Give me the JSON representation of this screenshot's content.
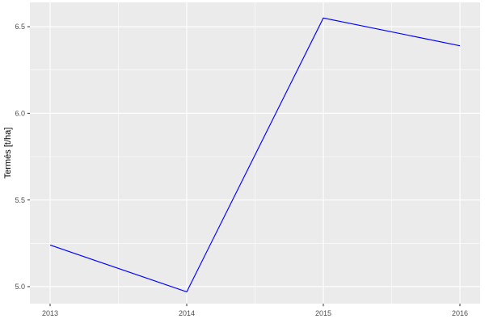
{
  "chart_data": {
    "type": "line",
    "title": "",
    "xlabel": "",
    "ylabel": "Termés [t/ha]",
    "x": [
      2013,
      2014,
      2015,
      2016
    ],
    "series": [
      {
        "name": "termes",
        "values": [
          5.24,
          4.97,
          6.55,
          6.39
        ],
        "color": "#0000FF"
      }
    ],
    "xlim": [
      2012.852,
      2016.148
    ],
    "ylim": [
      4.902,
      6.64
    ],
    "x_ticks": [
      {
        "value": 2013,
        "label": "2013"
      },
      {
        "value": 2014,
        "label": "2014"
      },
      {
        "value": 2015,
        "label": "2015"
      },
      {
        "value": 2016,
        "label": "2016"
      }
    ],
    "y_ticks": [
      {
        "value": 5.0,
        "label": "5.0"
      },
      {
        "value": 5.5,
        "label": "5.5"
      },
      {
        "value": 6.0,
        "label": "6.0"
      },
      {
        "value": 6.5,
        "label": "6.5"
      }
    ],
    "x_minor": [
      2013.5,
      2014.5,
      2015.5
    ],
    "y_minor": [
      5.25,
      5.75,
      6.25
    ],
    "grid": true,
    "legend": "none",
    "colors": {
      "panel_bg": "#EBEBEB",
      "grid_major": "#FFFFFF",
      "grid_minor": "#FFFFFF",
      "tick_mark": "#333333",
      "tick_label": "#4D4D4D",
      "axis_title": "#000000"
    }
  }
}
